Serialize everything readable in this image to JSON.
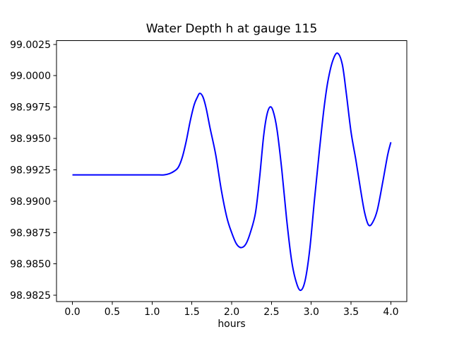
{
  "figure": {
    "background": "#ffffff",
    "text_color": "#000000",
    "spine_color": "#000000"
  },
  "chart_data": {
    "type": "line",
    "title": "Water Depth h at gauge 115",
    "xlabel": "hours",
    "ylabel": "",
    "grid": false,
    "legend": "none",
    "line_color": "#0000ff",
    "xlim": [
      -0.2,
      4.2
    ],
    "ylim": [
      98.982,
      99.0028
    ],
    "xticks": [
      0.0,
      0.5,
      1.0,
      1.5,
      2.0,
      2.5,
      3.0,
      3.5,
      4.0
    ],
    "yticks": [
      98.9825,
      98.985,
      98.9875,
      98.99,
      98.9925,
      98.995,
      98.9975,
      99.0,
      99.0025
    ],
    "xtick_decimals": 1,
    "ytick_decimals": 4,
    "series": [
      {
        "name": "h",
        "x": [
          0.0,
          0.3,
          0.6,
          0.9,
          1.05,
          1.15,
          1.22,
          1.28,
          1.33,
          1.38,
          1.43,
          1.48,
          1.53,
          1.57,
          1.6,
          1.64,
          1.68,
          1.73,
          1.8,
          1.87,
          1.94,
          2.0,
          2.06,
          2.12,
          2.18,
          2.24,
          2.3,
          2.35,
          2.4,
          2.44,
          2.48,
          2.52,
          2.57,
          2.63,
          2.69,
          2.75,
          2.8,
          2.86,
          2.92,
          2.98,
          3.04,
          3.1,
          3.16,
          3.21,
          3.27,
          3.33,
          3.39,
          3.44,
          3.5,
          3.56,
          3.62,
          3.67,
          3.72,
          3.77,
          3.83,
          3.9,
          3.96,
          4.0
        ],
        "y": [
          98.9921,
          98.9921,
          98.9921,
          98.9921,
          98.9921,
          98.9921,
          98.9922,
          98.9924,
          98.9927,
          98.9935,
          98.9948,
          98.9964,
          98.9977,
          98.9983,
          98.9986,
          98.9983,
          98.9974,
          98.9958,
          98.9937,
          98.9909,
          98.9887,
          98.9875,
          98.9866,
          98.9863,
          98.9866,
          98.9876,
          98.9891,
          98.9918,
          98.9951,
          98.9968,
          98.9975,
          98.9972,
          98.9957,
          98.9925,
          98.9886,
          98.9854,
          98.9838,
          98.9829,
          98.9836,
          98.9861,
          98.9901,
          98.9939,
          98.9974,
          98.9996,
          99.0012,
          99.0018,
          99.0009,
          98.9986,
          98.9955,
          98.9933,
          98.9909,
          98.9891,
          98.9881,
          98.9883,
          98.9893,
          98.9916,
          98.9937,
          98.9947
        ]
      }
    ]
  }
}
